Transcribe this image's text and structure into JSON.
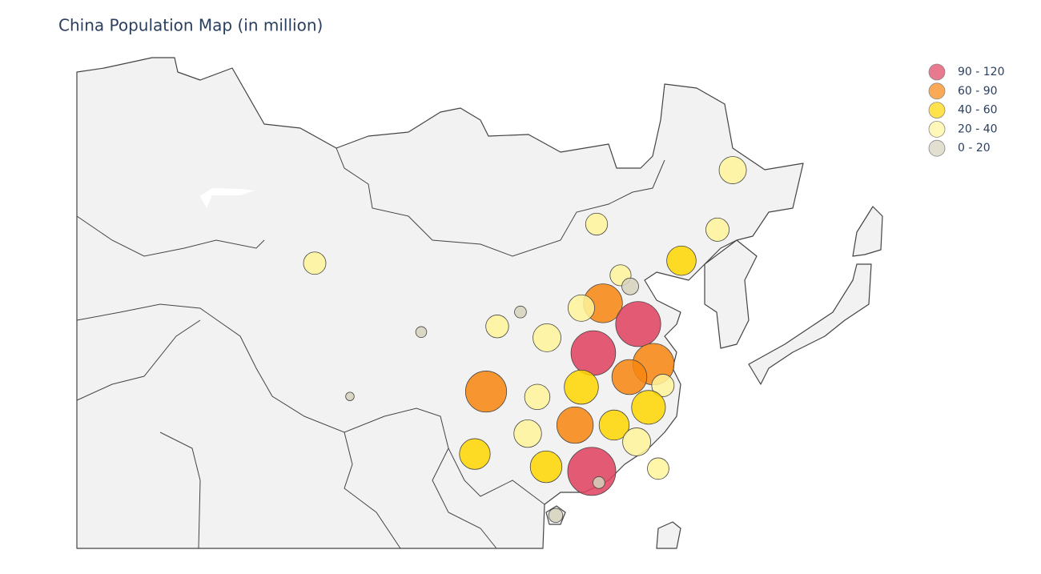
{
  "chart_data": {
    "type": "bubble_map",
    "title": "China Population Map (in million)",
    "lon": [
      127.36,
      125.91,
      122.48,
      114.41,
      116.69,
      117.61,
      115.02,
      112.96,
      118.37,
      107.17,
      109.69,
      114.1,
      119.82,
      117.53,
      120.72,
      119.35,
      112.96,
      108.77,
      103.9,
      112.36,
      116.08,
      118.22,
      107.86,
      102.83,
      109.61,
      113.95,
      120.27,
      114.63,
      110.52,
      90.95,
      97.73,
      87.6,
      104.96
    ],
    "lat": [
      46.98,
      42.98,
      40.78,
      43.36,
      39.72,
      38.9,
      37.64,
      37.28,
      36.06,
      36.98,
      35.0,
      33.8,
      32.92,
      31.88,
      31.2,
      29.4,
      31.06,
      30.26,
      30.7,
      27.92,
      27.92,
      26.5,
      27.2,
      25.46,
      24.36,
      23.96,
      24.2,
      22.98,
      20.08,
      30.3,
      35.44,
      40.6,
      35.88
    ],
    "values": [
      37,
      27,
      43,
      24,
      22,
      14,
      75,
      35,
      101,
      7,
      39,
      99,
      85,
      61,
      25,
      57,
      58,
      32,
      84,
      66,
      45,
      39,
      38,
      47,
      50,
      115,
      23,
      7,
      10,
      3.6,
      6,
      25,
      26
    ],
    "legend": [
      {
        "label": "90 - 120",
        "range": [
          90,
          120
        ],
        "color": "#e0405e"
      },
      {
        "label": "60 - 90",
        "range": [
          60,
          90
        ],
        "color": "#f8860f"
      },
      {
        "label": "40 - 60",
        "range": [
          40,
          60
        ],
        "color": "#ffd700"
      },
      {
        "label": "20 - 40",
        "range": [
          20,
          40
        ],
        "color": "#fff59a"
      },
      {
        "label": "0 - 20",
        "range": [
          0,
          20
        ],
        "color": "#d6d2bc"
      }
    ]
  }
}
